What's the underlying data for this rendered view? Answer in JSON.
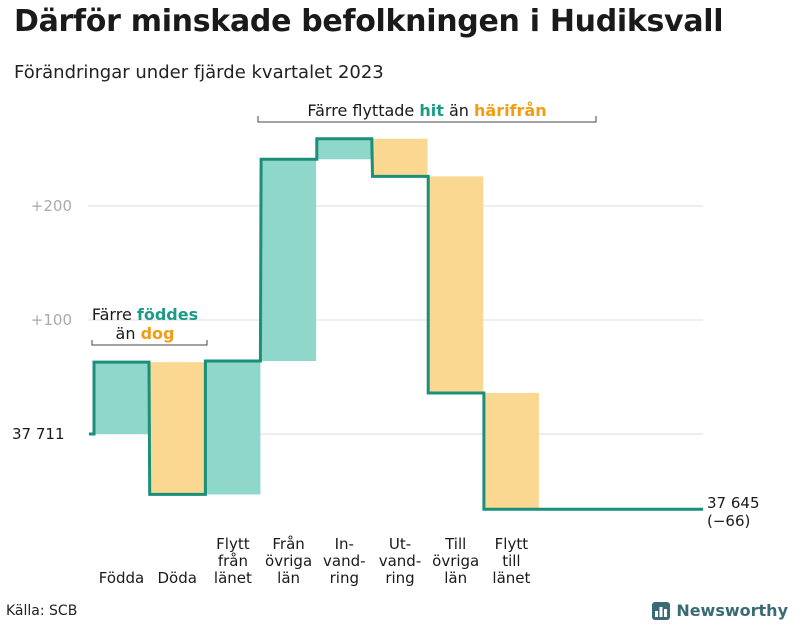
{
  "header": {
    "title": "Därför minskade befolkningen i Hudiksvall",
    "subtitle": "Förändringar under fjärde kvartalet 2023"
  },
  "footer": {
    "source": "Källa: SCB",
    "brand": "Newsworthy"
  },
  "colors": {
    "increase": "#8fd6cb",
    "decrease": "#fbd891",
    "line": "#1a8f7a",
    "teal_text": "#1a9c87",
    "orange_text": "#f39c12",
    "grid": "#dcdcdc",
    "tick_text": "#aaaaaa"
  },
  "chart_data": {
    "type": "waterfall",
    "start": {
      "value": 37711,
      "label": "37  711"
    },
    "end": {
      "value": 37645,
      "label": "37 645",
      "change_label": "(−66)"
    },
    "categories": [
      "Födda",
      "Döda",
      "Flytt från länet",
      "Från övriga län",
      "In-vandring",
      "Ut-vandring",
      "Till övriga län",
      "Flytt till länet"
    ],
    "category_lines": [
      [
        "Födda"
      ],
      [
        "Döda"
      ],
      [
        "Flytt",
        "från",
        "länet"
      ],
      [
        "Från",
        "övriga",
        "län"
      ],
      [
        "In-",
        "vand-",
        "ring"
      ],
      [
        "Ut-",
        "vand-",
        "ring"
      ],
      [
        "Till",
        "övriga",
        "län"
      ],
      [
        "Flytt",
        "till",
        "länet"
      ]
    ],
    "values": [
      63,
      -116,
      117,
      177,
      18,
      -33,
      -190,
      -102
    ],
    "step_gaps": [
      1,
      3,
      5,
      6,
      7
    ],
    "yticks": [
      {
        "value": 100,
        "label": "+100"
      },
      {
        "value": 200,
        "label": "+200"
      }
    ],
    "annotations": {
      "birth": {
        "line1_a": "Färre ",
        "line1_b": "föddes",
        "line2_a": "än ",
        "line2_b": "dog"
      },
      "move": {
        "a": "Färre flyttade ",
        "b": "hit",
        "c": " än ",
        "d": "härifrån"
      }
    }
  }
}
